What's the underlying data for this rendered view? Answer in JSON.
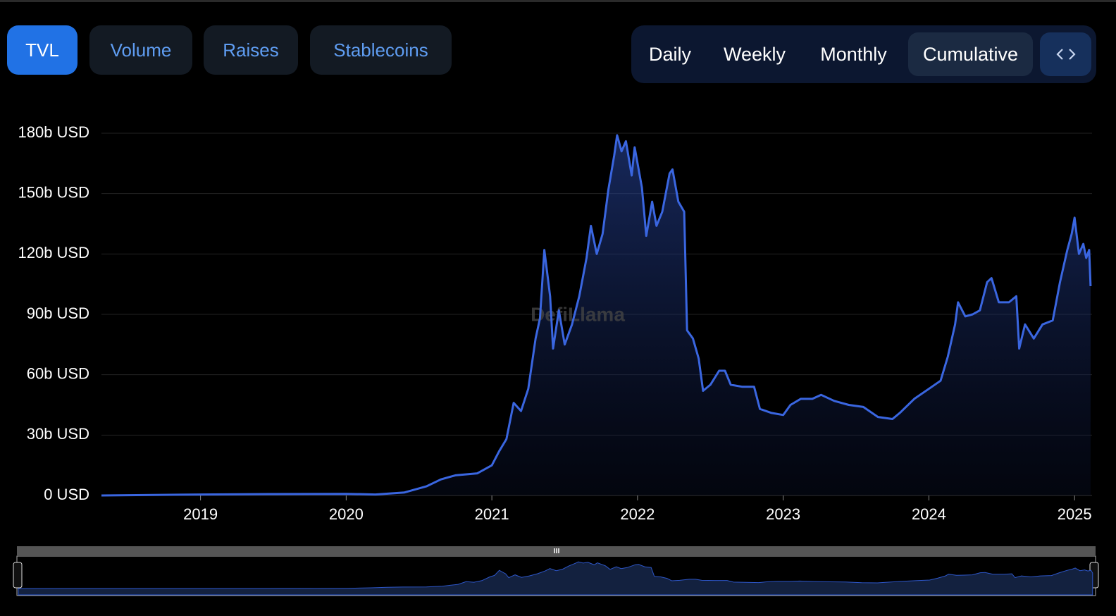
{
  "tabs": [
    "TVL",
    "Volume",
    "Raises",
    "Stablecoins"
  ],
  "periods": [
    "Daily",
    "Weekly",
    "Monthly",
    "Cumulative"
  ],
  "chart_data": {
    "type": "area",
    "watermark": "DefiLlama",
    "color": "#3a66e0",
    "grid": true,
    "x": [
      2018.32,
      2019.0,
      2019.5,
      2020.0,
      2020.2,
      2020.4,
      2020.55,
      2020.65,
      2020.75,
      2020.9,
      2021.0,
      2021.05,
      2021.1,
      2021.15,
      2021.2,
      2021.25,
      2021.3,
      2021.33,
      2021.36,
      2021.4,
      2021.42,
      2021.46,
      2021.5,
      2021.55,
      2021.6,
      2021.65,
      2021.68,
      2021.72,
      2021.76,
      2021.8,
      2021.84,
      2021.86,
      2021.89,
      2021.92,
      2021.96,
      2021.98,
      2022.03,
      2022.06,
      2022.1,
      2022.13,
      2022.17,
      2022.22,
      2022.24,
      2022.28,
      2022.32,
      2022.34,
      2022.38,
      2022.42,
      2022.45,
      2022.5,
      2022.56,
      2022.6,
      2022.64,
      2022.72,
      2022.8,
      2022.84,
      2022.92,
      2023.0,
      2023.05,
      2023.12,
      2023.2,
      2023.26,
      2023.35,
      2023.45,
      2023.55,
      2023.65,
      2023.75,
      2023.8,
      2023.9,
      2024.0,
      2024.08,
      2024.13,
      2024.18,
      2024.2,
      2024.25,
      2024.3,
      2024.35,
      2024.4,
      2024.43,
      2024.48,
      2024.55,
      2024.6,
      2024.62,
      2024.66,
      2024.72,
      2024.78,
      2024.85,
      2024.9,
      2024.95,
      2024.98,
      2025.0,
      2025.03,
      2025.06,
      2025.08,
      2025.1,
      2025.11
    ],
    "values": [
      0,
      0.5,
      0.7,
      0.8,
      0.5,
      1.5,
      4.5,
      8,
      10,
      11,
      15,
      22,
      28,
      46,
      42,
      53,
      78,
      88,
      122,
      99,
      73,
      92,
      75,
      85,
      99,
      118,
      134,
      120,
      130,
      152,
      169,
      179,
      171,
      176,
      159,
      173,
      153,
      129,
      146,
      134,
      141,
      160,
      162,
      146,
      141,
      82,
      78,
      68,
      52,
      55,
      62,
      62,
      55,
      54,
      54,
      43,
      41,
      40,
      45,
      48,
      48,
      50,
      47,
      45,
      44,
      39,
      38,
      41,
      48,
      53,
      57,
      69,
      85,
      96,
      89,
      90,
      92,
      106,
      108,
      96,
      96,
      99,
      73,
      85,
      78,
      85,
      87,
      106,
      122,
      130,
      138,
      120,
      125,
      118,
      122,
      104
    ],
    "xlim": [
      2018.32,
      2025.12
    ],
    "xticks": [
      2019,
      2020,
      2021,
      2022,
      2023,
      2024,
      2025
    ],
    "ylim": [
      0,
      180
    ],
    "yticks": [
      {
        "value": 0,
        "label": "0 USD"
      },
      {
        "value": 30,
        "label": "30b USD"
      },
      {
        "value": 60,
        "label": "60b USD"
      },
      {
        "value": 90,
        "label": "90b USD"
      },
      {
        "value": 120,
        "label": "120b USD"
      },
      {
        "value": 150,
        "label": "150b USD"
      },
      {
        "value": 180,
        "label": "180b USD"
      }
    ]
  }
}
